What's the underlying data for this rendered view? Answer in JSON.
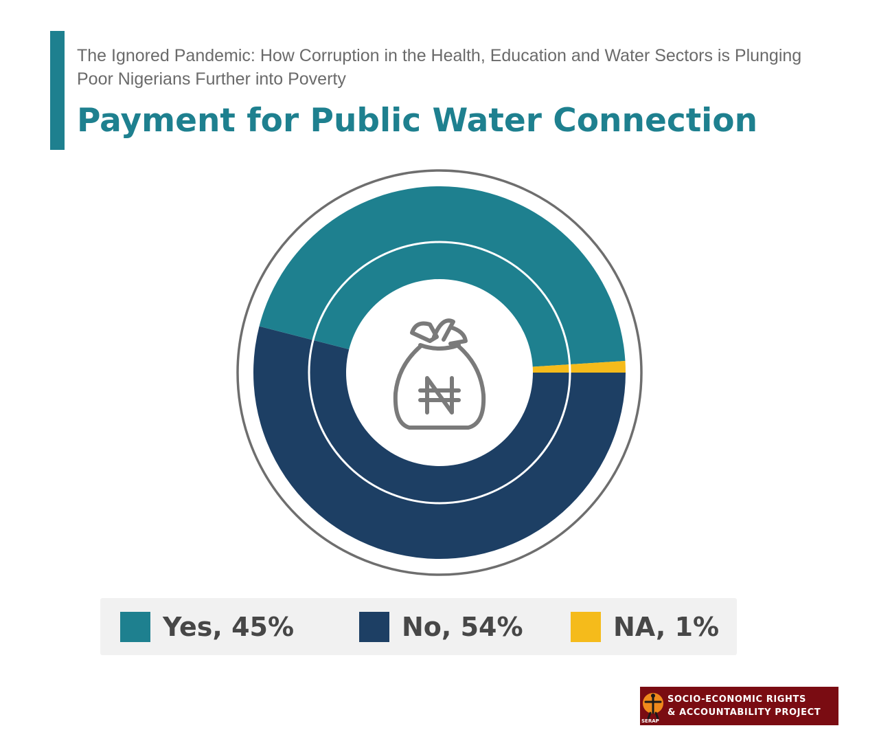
{
  "header": {
    "subtitle": "The Ignored Pandemic: How Corruption in the Health, Education and Water Sectors is Plunging Poor Nigerians Further into Poverty",
    "title": "Payment for Public Water Connection"
  },
  "chart_data": {
    "type": "pie",
    "style": "donut",
    "title": "Payment for Public Water Connection",
    "slices": [
      {
        "label": "Yes",
        "value": 45,
        "color": "#1e808f"
      },
      {
        "label": "No",
        "value": 54,
        "color": "#1d3f64"
      },
      {
        "label": "NA",
        "value": 1,
        "color": "#f5bb1b"
      }
    ],
    "center_icon": "naira-money-bag-icon",
    "legend_position": "bottom"
  },
  "legend": {
    "items": [
      {
        "text": "Yes, 45%",
        "color": "#1e808f"
      },
      {
        "text": "No, 54%",
        "color": "#1d3f64"
      },
      {
        "text": "NA, 1%",
        "color": "#f5bb1b"
      }
    ]
  },
  "logo": {
    "line1": "SOCIO-ECONOMIC RIGHTS",
    "line2": "& ACCOUNTABILITY PROJECT",
    "abbr": "SERAP"
  },
  "colors": {
    "accent": "#1e808f",
    "ring": "#6e6e6e",
    "icon": "#7a7a7a",
    "logo_bg": "#7a0c12"
  }
}
